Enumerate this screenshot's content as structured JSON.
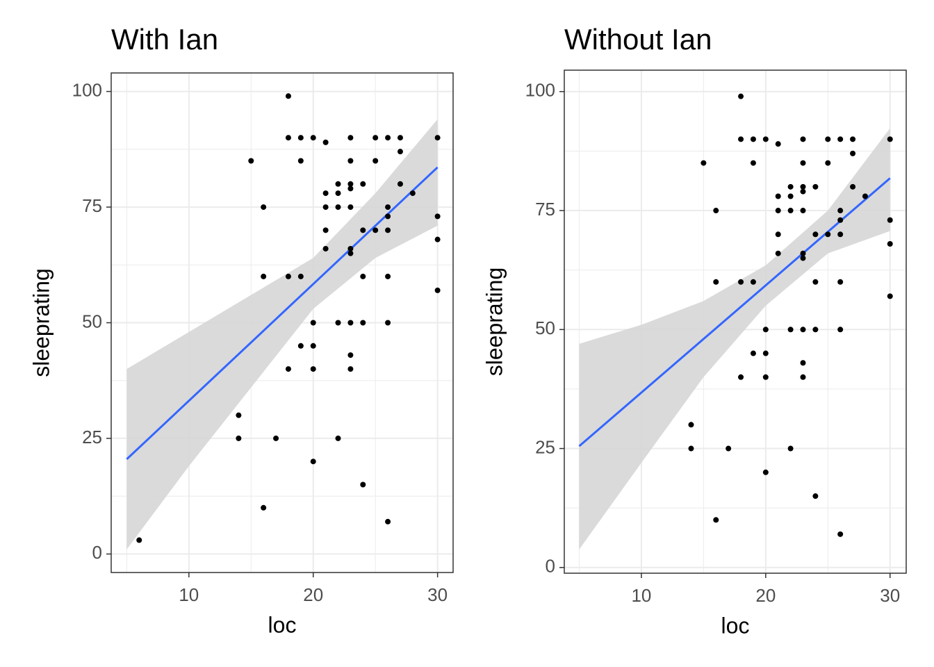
{
  "chart_data": [
    {
      "type": "scatter",
      "title": "With Ian",
      "x_label": "loc",
      "y_label": "sleeprating",
      "x": [
        6,
        18,
        18,
        19,
        20,
        21,
        23,
        25,
        26,
        27,
        30,
        15,
        19,
        23,
        25,
        27,
        22,
        23,
        24,
        27,
        21,
        22,
        28,
        23,
        16,
        21,
        22,
        23,
        26,
        21,
        24,
        25,
        26,
        26,
        30,
        30,
        21,
        23,
        23,
        16,
        18,
        19,
        24,
        26,
        30,
        20,
        22,
        23,
        24,
        26,
        19,
        20,
        23,
        18,
        20,
        23,
        14,
        14,
        17,
        22,
        20,
        24,
        16,
        26
      ],
      "values": [
        3,
        99,
        90,
        90,
        90,
        89,
        90,
        90,
        90,
        90,
        90,
        85,
        85,
        85,
        85,
        87,
        80,
        80,
        80,
        80,
        78,
        78,
        78,
        79,
        75,
        75,
        75,
        75,
        75,
        70,
        70,
        70,
        70,
        73,
        73,
        68,
        66,
        66,
        65,
        60,
        60,
        60,
        60,
        60,
        57,
        50,
        50,
        50,
        50,
        50,
        45,
        45,
        43,
        40,
        40,
        40,
        30,
        25,
        25,
        25,
        20,
        15,
        10,
        7
      ],
      "color": "#000000",
      "fit": {
        "x": [
          5,
          30
        ],
        "values": [
          20.5,
          83.6
        ],
        "color": "#3366ff"
      },
      "band": {
        "x": [
          5,
          10,
          15,
          20,
          25,
          30
        ],
        "lower": [
          1,
          19,
          36,
          53,
          64,
          71
        ],
        "upper": [
          40,
          48,
          56,
          64,
          78,
          94
        ],
        "color": "#d6d6d6"
      },
      "xlim": [
        3.75,
        31.25
      ],
      "ylim": [
        -4,
        104
      ],
      "xticks": [
        10,
        20,
        30
      ],
      "yticks": [
        0,
        25,
        50,
        75,
        100
      ],
      "minor_xticks": [
        5,
        15,
        25
      ],
      "minor_yticks": [
        12.5,
        37.5,
        62.5,
        87.5
      ],
      "grid": true
    },
    {
      "type": "scatter",
      "title": "Without Ian",
      "x_label": "loc",
      "y_label": "sleeprating",
      "x": [
        18,
        18,
        19,
        20,
        21,
        23,
        25,
        26,
        27,
        30,
        15,
        19,
        23,
        25,
        27,
        22,
        23,
        24,
        27,
        21,
        22,
        28,
        23,
        16,
        21,
        22,
        23,
        26,
        21,
        24,
        25,
        26,
        26,
        30,
        30,
        21,
        23,
        23,
        16,
        18,
        19,
        24,
        26,
        30,
        20,
        22,
        23,
        24,
        26,
        19,
        20,
        23,
        18,
        20,
        23,
        14,
        14,
        17,
        22,
        20,
        24,
        16,
        26
      ],
      "values": [
        99,
        90,
        90,
        90,
        89,
        90,
        90,
        90,
        90,
        90,
        85,
        85,
        85,
        85,
        87,
        80,
        80,
        80,
        80,
        78,
        78,
        78,
        79,
        75,
        75,
        75,
        75,
        75,
        70,
        70,
        70,
        70,
        73,
        73,
        68,
        66,
        66,
        65,
        60,
        60,
        60,
        60,
        60,
        57,
        50,
        50,
        50,
        50,
        50,
        45,
        45,
        43,
        40,
        40,
        40,
        30,
        25,
        25,
        25,
        20,
        15,
        10,
        7
      ],
      "color": "#000000",
      "fit": {
        "x": [
          5,
          30
        ],
        "values": [
          25.5,
          81.8
        ],
        "color": "#3366ff"
      },
      "band": {
        "x": [
          5,
          10,
          15,
          20,
          25,
          30
        ],
        "lower": [
          3.8,
          22,
          40,
          55,
          66,
          70.7
        ],
        "upper": [
          47,
          51,
          56,
          63.5,
          75,
          92.3
        ],
        "color": "#d6d6d6"
      },
      "xlim": [
        3.8,
        31.3
      ],
      "ylim": [
        -1.2,
        104.5
      ],
      "xticks": [
        10,
        20,
        30
      ],
      "yticks": [
        0,
        25,
        50,
        75,
        100
      ],
      "minor_xticks": [
        5,
        15,
        25
      ],
      "minor_yticks": [
        12.5,
        37.5,
        62.5,
        87.5
      ],
      "grid": true
    }
  ]
}
